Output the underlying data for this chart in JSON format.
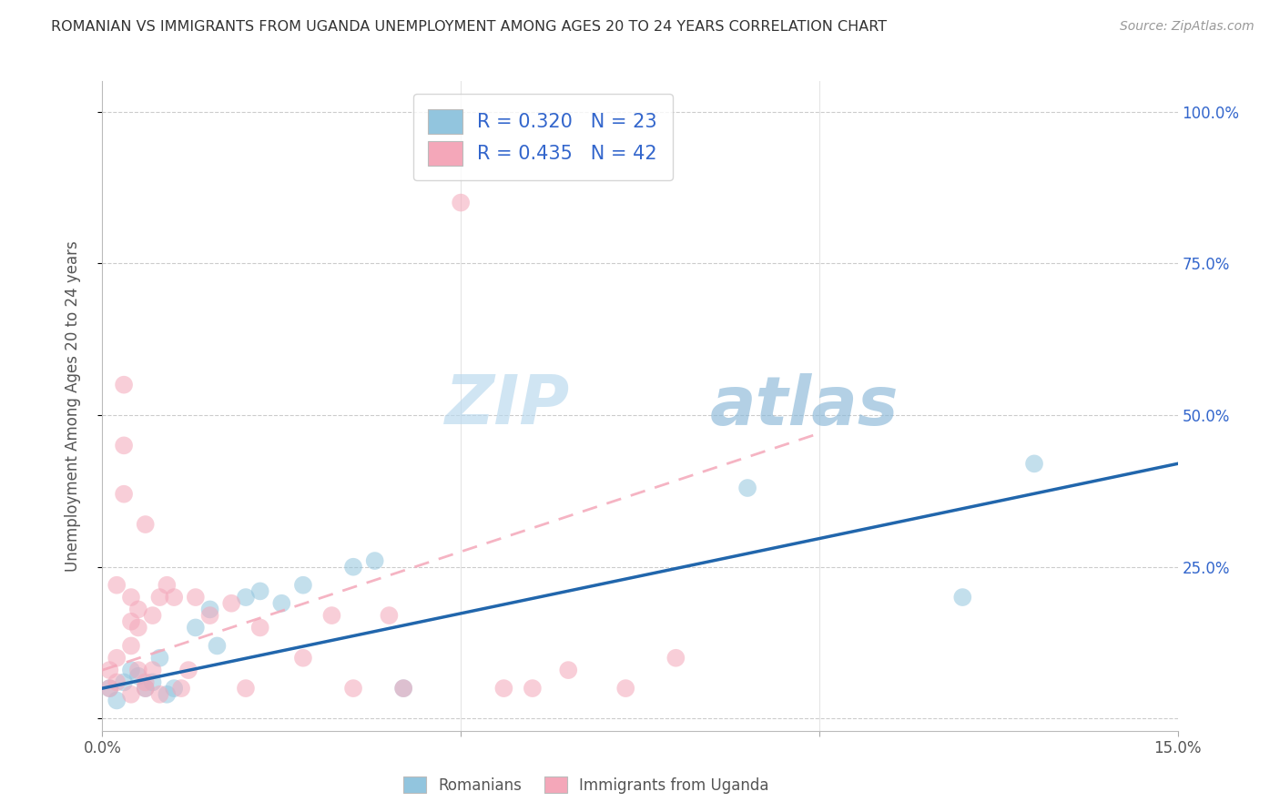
{
  "title": "ROMANIAN VS IMMIGRANTS FROM UGANDA UNEMPLOYMENT AMONG AGES 20 TO 24 YEARS CORRELATION CHART",
  "source": "Source: ZipAtlas.com",
  "ylabel": "Unemployment Among Ages 20 to 24 years",
  "xlim": [
    0.0,
    0.15
  ],
  "ylim": [
    -0.02,
    1.05
  ],
  "yticks": [
    0.0,
    0.25,
    0.5,
    0.75,
    1.0
  ],
  "ytick_labels": [
    "",
    "25.0%",
    "50.0%",
    "75.0%",
    "100.0%"
  ],
  "watermark_zip": "ZIP",
  "watermark_atlas": "atlas",
  "blue_color": "#92c5de",
  "pink_color": "#f4a7b9",
  "blue_line_color": "#2166ac",
  "pink_line_color": "#f4a7b9",
  "label_color": "#3366cc",
  "blue_scatter": [
    [
      0.001,
      0.05
    ],
    [
      0.002,
      0.03
    ],
    [
      0.003,
      0.06
    ],
    [
      0.004,
      0.08
    ],
    [
      0.005,
      0.07
    ],
    [
      0.006,
      0.05
    ],
    [
      0.007,
      0.06
    ],
    [
      0.008,
      0.1
    ],
    [
      0.009,
      0.04
    ],
    [
      0.01,
      0.05
    ],
    [
      0.013,
      0.15
    ],
    [
      0.015,
      0.18
    ],
    [
      0.016,
      0.12
    ],
    [
      0.02,
      0.2
    ],
    [
      0.022,
      0.21
    ],
    [
      0.025,
      0.19
    ],
    [
      0.028,
      0.22
    ],
    [
      0.035,
      0.25
    ],
    [
      0.038,
      0.26
    ],
    [
      0.042,
      0.05
    ],
    [
      0.09,
      0.38
    ],
    [
      0.12,
      0.2
    ],
    [
      0.13,
      0.42
    ]
  ],
  "pink_scatter": [
    [
      0.001,
      0.05
    ],
    [
      0.001,
      0.08
    ],
    [
      0.002,
      0.22
    ],
    [
      0.002,
      0.1
    ],
    [
      0.003,
      0.45
    ],
    [
      0.003,
      0.37
    ],
    [
      0.003,
      0.55
    ],
    [
      0.004,
      0.16
    ],
    [
      0.004,
      0.2
    ],
    [
      0.004,
      0.12
    ],
    [
      0.005,
      0.18
    ],
    [
      0.005,
      0.08
    ],
    [
      0.005,
      0.15
    ],
    [
      0.006,
      0.06
    ],
    [
      0.006,
      0.32
    ],
    [
      0.006,
      0.05
    ],
    [
      0.007,
      0.17
    ],
    [
      0.007,
      0.08
    ],
    [
      0.008,
      0.2
    ],
    [
      0.008,
      0.04
    ],
    [
      0.009,
      0.22
    ],
    [
      0.01,
      0.2
    ],
    [
      0.011,
      0.05
    ],
    [
      0.012,
      0.08
    ],
    [
      0.013,
      0.2
    ],
    [
      0.015,
      0.17
    ],
    [
      0.018,
      0.19
    ],
    [
      0.02,
      0.05
    ],
    [
      0.022,
      0.15
    ],
    [
      0.028,
      0.1
    ],
    [
      0.032,
      0.17
    ],
    [
      0.035,
      0.05
    ],
    [
      0.04,
      0.17
    ],
    [
      0.042,
      0.05
    ],
    [
      0.05,
      0.85
    ],
    [
      0.056,
      0.05
    ],
    [
      0.06,
      0.05
    ],
    [
      0.065,
      0.08
    ],
    [
      0.073,
      0.05
    ],
    [
      0.08,
      0.1
    ],
    [
      0.002,
      0.06
    ],
    [
      0.004,
      0.04
    ]
  ],
  "blue_trendline_x": [
    0.0,
    0.15
  ],
  "blue_trendline_y": [
    0.05,
    0.42
  ],
  "pink_trendline_x": [
    0.0,
    0.1
  ],
  "pink_trendline_y": [
    0.08,
    0.47
  ],
  "background_color": "#ffffff",
  "grid_color": "#cccccc",
  "R_blue": "0.320",
  "N_blue": "23",
  "R_pink": "0.435",
  "N_pink": "42"
}
